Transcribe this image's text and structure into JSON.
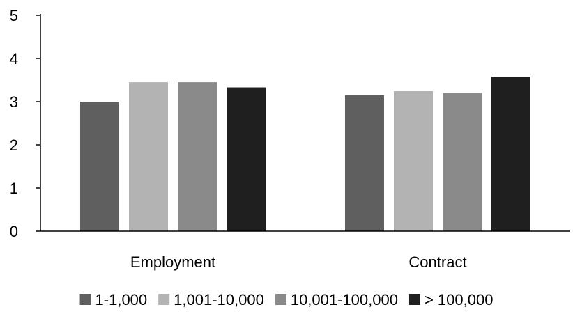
{
  "chart_data": {
    "type": "bar",
    "title": "",
    "xlabel": "",
    "ylabel": "",
    "ylim": [
      0,
      5
    ],
    "yticks": [
      0,
      1,
      2,
      3,
      4,
      5
    ],
    "categories": [
      "Employment",
      "Contract"
    ],
    "series": [
      {
        "name": "1-1,000",
        "values": [
          3.0,
          3.15
        ],
        "color": "#5f5f5f"
      },
      {
        "name": "1,001-10,000",
        "values": [
          3.45,
          3.25
        ],
        "color": "#b3b3b3"
      },
      {
        "name": "10,001-100,000",
        "values": [
          3.45,
          3.2
        ],
        "color": "#8a8a8a"
      },
      {
        "name": "> 100,000",
        "values": [
          3.33,
          3.58
        ],
        "color": "#1f1f1f"
      }
    ],
    "grid": false,
    "legend": "bottom"
  }
}
